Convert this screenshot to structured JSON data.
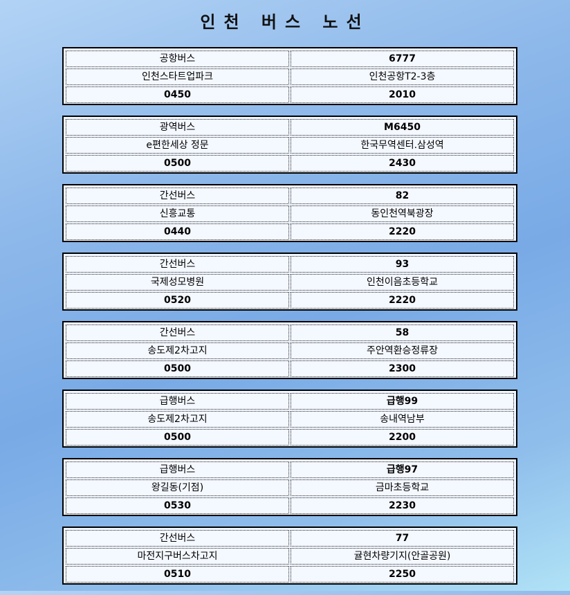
{
  "title": "인천 버스 노선",
  "routes": [
    {
      "type": "공항버스",
      "number": "6777",
      "origin": "인천스타트업파크",
      "destination": "인천공항T2-3층",
      "first": "0450",
      "last": "2010"
    },
    {
      "type": "광역버스",
      "number": "M6450",
      "origin": "e편한세상 정문",
      "destination": "한국무역센터.삼성역",
      "first": "0500",
      "last": "2430"
    },
    {
      "type": "간선버스",
      "number": "82",
      "origin": "신흥교통",
      "destination": "동인천역북광장",
      "first": "0440",
      "last": "2220"
    },
    {
      "type": "간선버스",
      "number": "93",
      "origin": "국제성모병원",
      "destination": "인천이음초등학교",
      "first": "0520",
      "last": "2220"
    },
    {
      "type": "간선버스",
      "number": "58",
      "origin": "송도제2차고지",
      "destination": "주안역환승정류장",
      "first": "0500",
      "last": "2300"
    },
    {
      "type": "급행버스",
      "number": "급행99",
      "origin": "송도제2차고지",
      "destination": "송내역남부",
      "first": "0500",
      "last": "2200"
    },
    {
      "type": "급행버스",
      "number": "급행97",
      "origin": "왕길동(기점)",
      "destination": "금마초등학교",
      "first": "0530",
      "last": "2230"
    },
    {
      "type": "간선버스",
      "number": "77",
      "origin": "마전지구버스차고지",
      "destination": "귤현차량기지(안골공원)",
      "first": "0510",
      "last": "2250"
    }
  ]
}
